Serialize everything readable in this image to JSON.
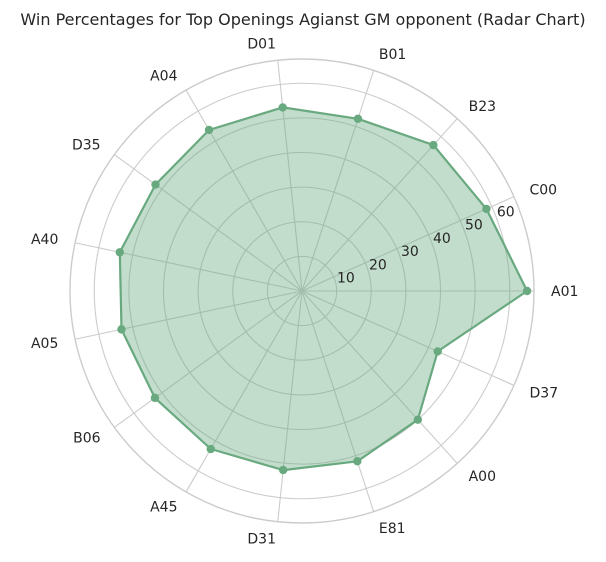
{
  "chart_data": {
    "type": "radar",
    "title": "Win Percentages for Top Openings Agianst GM opponent (Radar Chart)",
    "categories": [
      "A01",
      "C00",
      "B23",
      "B01",
      "D01",
      "A04",
      "D35",
      "A40",
      "A05",
      "B06",
      "A45",
      "D31",
      "E81",
      "A00",
      "D37"
    ],
    "series": [
      {
        "values": [
          65.0,
          58.3,
          56.7,
          52.3,
          53.3,
          53.7,
          52.3,
          53.8,
          53.3,
          52.5,
          52.7,
          52.0,
          51.7,
          50.0,
          42.9
        ]
      }
    ],
    "radial_ticks": [
      10,
      20,
      30,
      40,
      50,
      60
    ],
    "rlim": [
      0,
      67
    ],
    "grid": true,
    "colors": {
      "line": "#69a97f",
      "fill": "#69a97f",
      "fill_opacity": 0.4,
      "grid": "#cccccc",
      "inner_grid": "#b0c4b6"
    }
  }
}
